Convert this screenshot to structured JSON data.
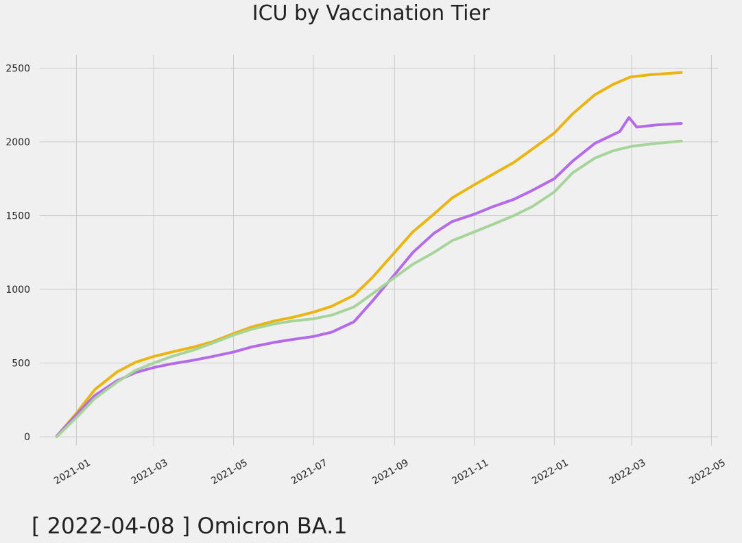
{
  "chart_data": {
    "type": "line",
    "title": "ICU by Vaccination Tier",
    "caption": "[ 2022-04-08 ] Omicron BA.1",
    "xlabel": "",
    "ylabel": "",
    "grid": true,
    "legend": "none",
    "x_ticks": [
      "2021-01",
      "2021-03",
      "2021-05",
      "2021-07",
      "2021-09",
      "2021-11",
      "2022-01",
      "2022-03",
      "2022-05"
    ],
    "y_ticks": [
      0,
      500,
      1000,
      1500,
      2000,
      2500
    ],
    "xlim": [
      "2020-12-04",
      "2022-05-06"
    ],
    "ylim": [
      -60,
      2590
    ],
    "series": [
      {
        "color": "#ebb40e",
        "points": [
          [
            "2020-12-17",
            5
          ],
          [
            "2021-01-01",
            160
          ],
          [
            "2021-01-15",
            320
          ],
          [
            "2021-02-01",
            440
          ],
          [
            "2021-02-15",
            505
          ],
          [
            "2021-03-01",
            545
          ],
          [
            "2021-03-15",
            575
          ],
          [
            "2021-04-01",
            610
          ],
          [
            "2021-04-15",
            645
          ],
          [
            "2021-05-01",
            700
          ],
          [
            "2021-05-15",
            745
          ],
          [
            "2021-06-01",
            785
          ],
          [
            "2021-06-15",
            810
          ],
          [
            "2021-07-01",
            845
          ],
          [
            "2021-07-15",
            885
          ],
          [
            "2021-08-01",
            960
          ],
          [
            "2021-08-15",
            1080
          ],
          [
            "2021-09-01",
            1250
          ],
          [
            "2021-09-15",
            1390
          ],
          [
            "2021-10-01",
            1510
          ],
          [
            "2021-10-15",
            1620
          ],
          [
            "2021-11-01",
            1710
          ],
          [
            "2021-11-15",
            1780
          ],
          [
            "2021-12-01",
            1860
          ],
          [
            "2021-12-15",
            1950
          ],
          [
            "2022-01-01",
            2060
          ],
          [
            "2022-01-15",
            2190
          ],
          [
            "2022-02-01",
            2320
          ],
          [
            "2022-02-15",
            2390
          ],
          [
            "2022-02-28",
            2440
          ],
          [
            "2022-03-15",
            2455
          ],
          [
            "2022-04-08",
            2470
          ]
        ]
      },
      {
        "color": "#b46aeb",
        "points": [
          [
            "2020-12-17",
            5
          ],
          [
            "2021-01-01",
            150
          ],
          [
            "2021-01-15",
            280
          ],
          [
            "2021-02-01",
            380
          ],
          [
            "2021-02-15",
            435
          ],
          [
            "2021-03-01",
            470
          ],
          [
            "2021-03-15",
            495
          ],
          [
            "2021-04-01",
            520
          ],
          [
            "2021-04-15",
            545
          ],
          [
            "2021-05-01",
            575
          ],
          [
            "2021-05-15",
            610
          ],
          [
            "2021-06-01",
            640
          ],
          [
            "2021-06-15",
            660
          ],
          [
            "2021-07-01",
            680
          ],
          [
            "2021-07-15",
            710
          ],
          [
            "2021-08-01",
            780
          ],
          [
            "2021-08-15",
            920
          ],
          [
            "2021-09-01",
            1100
          ],
          [
            "2021-09-15",
            1250
          ],
          [
            "2021-10-01",
            1380
          ],
          [
            "2021-10-15",
            1460
          ],
          [
            "2021-11-01",
            1510
          ],
          [
            "2021-11-15",
            1560
          ],
          [
            "2021-12-01",
            1610
          ],
          [
            "2021-12-15",
            1670
          ],
          [
            "2022-01-01",
            1750
          ],
          [
            "2022-01-15",
            1870
          ],
          [
            "2022-02-01",
            1990
          ],
          [
            "2022-02-20",
            2070
          ],
          [
            "2022-02-27",
            2165
          ],
          [
            "2022-03-05",
            2100
          ],
          [
            "2022-03-20",
            2115
          ],
          [
            "2022-04-08",
            2125
          ]
        ]
      },
      {
        "color": "#a6d49a",
        "points": [
          [
            "2020-12-17",
            0
          ],
          [
            "2021-01-01",
            130
          ],
          [
            "2021-01-15",
            260
          ],
          [
            "2021-02-01",
            370
          ],
          [
            "2021-02-15",
            450
          ],
          [
            "2021-03-01",
            500
          ],
          [
            "2021-03-15",
            545
          ],
          [
            "2021-04-01",
            590
          ],
          [
            "2021-04-15",
            635
          ],
          [
            "2021-05-01",
            690
          ],
          [
            "2021-05-15",
            730
          ],
          [
            "2021-06-01",
            765
          ],
          [
            "2021-06-15",
            785
          ],
          [
            "2021-07-01",
            800
          ],
          [
            "2021-07-15",
            825
          ],
          [
            "2021-08-01",
            880
          ],
          [
            "2021-08-15",
            970
          ],
          [
            "2021-09-01",
            1080
          ],
          [
            "2021-09-15",
            1170
          ],
          [
            "2021-10-01",
            1250
          ],
          [
            "2021-10-15",
            1330
          ],
          [
            "2021-11-01",
            1390
          ],
          [
            "2021-11-15",
            1440
          ],
          [
            "2021-12-01",
            1500
          ],
          [
            "2021-12-15",
            1560
          ],
          [
            "2022-01-01",
            1660
          ],
          [
            "2022-01-15",
            1790
          ],
          [
            "2022-02-01",
            1890
          ],
          [
            "2022-02-15",
            1940
          ],
          [
            "2022-03-01",
            1970
          ],
          [
            "2022-03-20",
            1990
          ],
          [
            "2022-04-08",
            2005
          ]
        ]
      }
    ]
  }
}
